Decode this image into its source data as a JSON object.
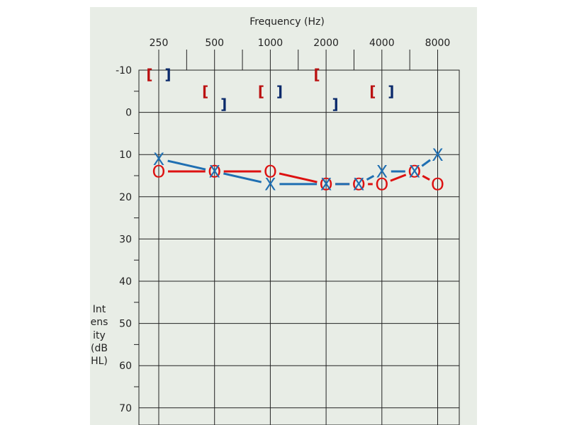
{
  "chart_data": {
    "type": "scatter",
    "title": "",
    "xlabel": "Frequency (Hz)",
    "ylabel": "Intensity (dB HL)",
    "x_ticks": [
      "250",
      "500",
      "1000",
      "2000",
      "4000",
      "8000"
    ],
    "y_ticks": [
      "-10",
      "0",
      "10",
      "20",
      "30",
      "40",
      "50",
      "60",
      "70"
    ],
    "ylim": [
      -10,
      70
    ],
    "y_inverted": true,
    "x_scale": "log2",
    "grid": true,
    "series": [
      {
        "symbol": "O",
        "color": "#dd1111",
        "points": [
          {
            "x": 250,
            "y": 14
          },
          {
            "x": 500,
            "y": 14
          },
          {
            "x": 1000,
            "y": 14
          },
          {
            "x": 2000,
            "y": 17
          },
          {
            "x": 3000,
            "y": 17
          },
          {
            "x": 4000,
            "y": 17
          },
          {
            "x": 6000,
            "y": 14
          },
          {
            "x": 8000,
            "y": 17
          }
        ]
      },
      {
        "symbol": "X",
        "color": "#1f6fb2",
        "points": [
          {
            "x": 250,
            "y": 11
          },
          {
            "x": 500,
            "y": 14
          },
          {
            "x": 1000,
            "y": 17
          },
          {
            "x": 2000,
            "y": 17
          },
          {
            "x": 3000,
            "y": 17
          },
          {
            "x": 4000,
            "y": 14
          },
          {
            "x": 6000,
            "y": 14
          },
          {
            "x": 8000,
            "y": 10
          }
        ]
      },
      {
        "symbol": "[",
        "color": "#bb1111",
        "points": [
          {
            "x": 250,
            "y": -9
          },
          {
            "x": 500,
            "y": -5
          },
          {
            "x": 1000,
            "y": -5
          },
          {
            "x": 2000,
            "y": -9
          },
          {
            "x": 4000,
            "y": -5
          }
        ]
      },
      {
        "symbol": "]",
        "color": "#0b2a6b",
        "points": [
          {
            "x": 250,
            "y": -9
          },
          {
            "x": 500,
            "y": -2
          },
          {
            "x": 1000,
            "y": -5
          },
          {
            "x": 2000,
            "y": -2
          },
          {
            "x": 4000,
            "y": -5
          }
        ]
      }
    ]
  }
}
